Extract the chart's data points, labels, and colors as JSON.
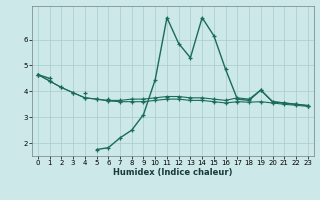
{
  "title": "",
  "xlabel": "Humidex (Indice chaleur)",
  "bg_color": "#cce8e8",
  "grid_color": "#aacccc",
  "line_color": "#1a6b5a",
  "x": [
    0,
    1,
    2,
    3,
    4,
    5,
    6,
    7,
    8,
    9,
    10,
    11,
    12,
    13,
    14,
    15,
    16,
    17,
    18,
    19,
    20,
    21,
    22,
    23
  ],
  "curve_top": [
    4.65,
    4.5,
    null,
    null,
    3.95,
    null,
    3.7,
    null,
    null,
    null,
    null,
    null,
    null,
    null,
    null,
    null,
    null,
    null,
    null,
    null,
    null,
    null,
    null,
    null
  ],
  "curve_main": [
    null,
    null,
    null,
    null,
    null,
    1.75,
    1.82,
    2.2,
    2.5,
    3.1,
    4.45,
    6.85,
    5.85,
    5.3,
    6.85,
    6.15,
    4.85,
    3.7,
    3.65,
    4.05,
    3.6,
    3.55,
    3.5,
    3.45
  ],
  "curve_flat": [
    4.65,
    4.4,
    4.15,
    3.95,
    3.75,
    3.7,
    3.65,
    3.65,
    3.7,
    3.7,
    3.75,
    3.8,
    3.8,
    3.75,
    3.75,
    3.7,
    3.65,
    3.75,
    3.7,
    4.05,
    3.6,
    3.55,
    3.5,
    3.45
  ],
  "curve_flat2": [
    4.65,
    4.4,
    4.15,
    3.95,
    3.75,
    3.7,
    3.63,
    3.6,
    3.6,
    3.6,
    3.65,
    3.7,
    3.7,
    3.65,
    3.65,
    3.6,
    3.55,
    3.6,
    3.58,
    3.6,
    3.55,
    3.5,
    3.46,
    3.42
  ],
  "ylim": [
    1.5,
    7.3
  ],
  "xlim": [
    -0.5,
    23.5
  ],
  "yticks": [
    2,
    3,
    4,
    5,
    6
  ],
  "xticks": [
    0,
    1,
    2,
    3,
    4,
    5,
    6,
    7,
    8,
    9,
    10,
    11,
    12,
    13,
    14,
    15,
    16,
    17,
    18,
    19,
    20,
    21,
    22,
    23
  ]
}
